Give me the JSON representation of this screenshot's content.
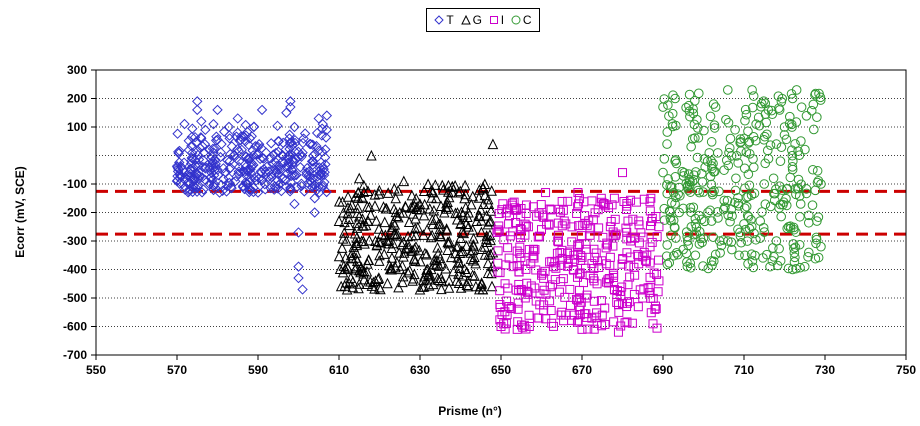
{
  "chart_data": {
    "type": "scatter",
    "xlabel": "Prisme (n°)",
    "ylabel": "Ecorr (mV, SCE)",
    "xlim": [
      550,
      750
    ],
    "ylim": [
      -700,
      300
    ],
    "x_ticks": [
      550,
      570,
      590,
      610,
      630,
      650,
      670,
      690,
      710,
      730,
      750
    ],
    "y_ticks": [
      300,
      200,
      100,
      -100,
      -200,
      -300,
      -400,
      -500,
      -600,
      -700
    ],
    "grid": "horizontal dotted",
    "legend_position": "top",
    "reference_lines": [
      {
        "y": -126,
        "style": "dashed",
        "color": "#cc0000"
      },
      {
        "y": -276,
        "style": "dashed",
        "color": "#cc0000"
      }
    ],
    "series": [
      {
        "name": "T",
        "marker": "diamond",
        "color": "#3333cc",
        "x_range": [
          570,
          607
        ],
        "points": [
          [
            570,
            -90
          ],
          [
            571,
            -70
          ],
          [
            572,
            -110
          ],
          [
            573,
            -60
          ],
          [
            574,
            -80
          ],
          [
            575,
            190
          ],
          [
            575,
            160
          ],
          [
            576,
            120
          ],
          [
            576,
            60
          ],
          [
            577,
            90
          ],
          [
            577,
            -40
          ],
          [
            578,
            20
          ],
          [
            579,
            110
          ],
          [
            580,
            160
          ],
          [
            580,
            -50
          ],
          [
            581,
            40
          ],
          [
            582,
            -60
          ],
          [
            583,
            -20
          ],
          [
            584,
            0
          ],
          [
            585,
            80
          ],
          [
            585,
            130
          ],
          [
            586,
            20
          ],
          [
            587,
            -40
          ],
          [
            588,
            60
          ],
          [
            589,
            100
          ],
          [
            590,
            30
          ],
          [
            590,
            -130
          ],
          [
            591,
            160
          ],
          [
            592,
            10
          ],
          [
            593,
            -10
          ],
          [
            594,
            -120
          ],
          [
            595,
            50
          ],
          [
            596,
            -80
          ],
          [
            597,
            150
          ],
          [
            597,
            -40
          ],
          [
            598,
            190
          ],
          [
            598,
            170
          ],
          [
            599,
            -170
          ],
          [
            599,
            100
          ],
          [
            600,
            -270
          ],
          [
            600,
            -390
          ],
          [
            600,
            -430
          ],
          [
            601,
            -470
          ],
          [
            601,
            10
          ],
          [
            602,
            -60
          ],
          [
            603,
            -90
          ],
          [
            604,
            -150
          ],
          [
            604,
            -200
          ],
          [
            605,
            130
          ],
          [
            606,
            110
          ],
          [
            606,
            -40
          ],
          [
            607,
            90
          ],
          [
            607,
            140
          ],
          [
            605,
            -110
          ],
          [
            603,
            40
          ],
          [
            596,
            0
          ],
          [
            588,
            -10
          ],
          [
            583,
            60
          ],
          [
            578,
            -100
          ],
          [
            572,
            -120
          ]
        ]
      },
      {
        "name": "G",
        "marker": "triangle",
        "color": "#000000",
        "x_range": [
          610,
          648
        ],
        "points": [
          [
            610,
            -230
          ],
          [
            611,
            -410
          ],
          [
            612,
            -470
          ],
          [
            613,
            -350
          ],
          [
            614,
            -400
          ],
          [
            615,
            -80
          ],
          [
            616,
            -300
          ],
          [
            617,
            -380
          ],
          [
            618,
            0
          ],
          [
            619,
            -440
          ],
          [
            620,
            -350
          ],
          [
            621,
            -180
          ],
          [
            622,
            -300
          ],
          [
            623,
            -260
          ],
          [
            624,
            -150
          ],
          [
            625,
            -200
          ],
          [
            626,
            -90
          ],
          [
            627,
            -410
          ],
          [
            628,
            -140
          ],
          [
            629,
            -320
          ],
          [
            630,
            -470
          ],
          [
            631,
            -210
          ],
          [
            632,
            -100
          ],
          [
            633,
            -280
          ],
          [
            634,
            -150
          ],
          [
            635,
            -240
          ],
          [
            636,
            -200
          ],
          [
            637,
            -180
          ],
          [
            638,
            -130
          ],
          [
            639,
            -320
          ],
          [
            640,
            -240
          ],
          [
            641,
            -150
          ],
          [
            642,
            -200
          ],
          [
            643,
            -260
          ],
          [
            644,
            -230
          ],
          [
            645,
            -190
          ],
          [
            646,
            -100
          ],
          [
            647,
            -170
          ],
          [
            648,
            40
          ],
          [
            648,
            -340
          ],
          [
            646,
            -320
          ],
          [
            643,
            -420
          ],
          [
            639,
            -440
          ],
          [
            635,
            -360
          ],
          [
            631,
            -460
          ],
          [
            627,
            -310
          ],
          [
            623,
            -400
          ],
          [
            619,
            -300
          ],
          [
            615,
            -450
          ],
          [
            612,
            -390
          ]
        ]
      },
      {
        "name": "I",
        "marker": "square",
        "color": "#cc00cc",
        "x_range": [
          649,
          689
        ],
        "points": [
          [
            649,
            -270
          ],
          [
            650,
            -600
          ],
          [
            651,
            -450
          ],
          [
            652,
            -530
          ],
          [
            653,
            -390
          ],
          [
            654,
            -610
          ],
          [
            655,
            -260
          ],
          [
            656,
            -500
          ],
          [
            657,
            -330
          ],
          [
            658,
            -180
          ],
          [
            659,
            -570
          ],
          [
            660,
            -420
          ],
          [
            661,
            -130
          ],
          [
            662,
            -510
          ],
          [
            663,
            -390
          ],
          [
            664,
            -300
          ],
          [
            665,
            -550
          ],
          [
            666,
            -240
          ],
          [
            667,
            -470
          ],
          [
            668,
            -350
          ],
          [
            669,
            -130
          ],
          [
            670,
            -610
          ],
          [
            671,
            -500
          ],
          [
            672,
            -280
          ],
          [
            673,
            -440
          ],
          [
            674,
            -190
          ],
          [
            675,
            -560
          ],
          [
            676,
            -380
          ],
          [
            677,
            -250
          ],
          [
            678,
            -470
          ],
          [
            679,
            -620
          ],
          [
            680,
            -60
          ],
          [
            681,
            -530
          ],
          [
            682,
            -300
          ],
          [
            683,
            -420
          ],
          [
            684,
            -230
          ],
          [
            685,
            -500
          ],
          [
            686,
            -350
          ],
          [
            687,
            -150
          ],
          [
            688,
            -540
          ],
          [
            689,
            -440
          ],
          [
            689,
            -250
          ],
          [
            684,
            -380
          ],
          [
            678,
            -150
          ],
          [
            672,
            -420
          ],
          [
            666,
            -560
          ],
          [
            660,
            -260
          ],
          [
            655,
            -470
          ],
          [
            652,
            -360
          ],
          [
            657,
            -600
          ]
        ]
      },
      {
        "name": "C",
        "marker": "circle",
        "color": "#339933",
        "x_range": [
          690,
          729
        ],
        "points": [
          [
            690,
            -60
          ],
          [
            690,
            170
          ],
          [
            691,
            40
          ],
          [
            692,
            -280
          ],
          [
            693,
            200
          ],
          [
            694,
            -200
          ],
          [
            695,
            -330
          ],
          [
            696,
            -110
          ],
          [
            697,
            -250
          ],
          [
            698,
            -350
          ],
          [
            699,
            -130
          ],
          [
            700,
            -290
          ],
          [
            701,
            -20
          ],
          [
            702,
            -370
          ],
          [
            703,
            170
          ],
          [
            704,
            -300
          ],
          [
            705,
            -190
          ],
          [
            706,
            230
          ],
          [
            707,
            -330
          ],
          [
            708,
            -80
          ],
          [
            709,
            -270
          ],
          [
            710,
            60
          ],
          [
            711,
            -380
          ],
          [
            712,
            230
          ],
          [
            713,
            110
          ],
          [
            714,
            -230
          ],
          [
            715,
            -100
          ],
          [
            716,
            160
          ],
          [
            717,
            -370
          ],
          [
            718,
            -300
          ],
          [
            719,
            -20
          ],
          [
            720,
            100
          ],
          [
            721,
            -250
          ],
          [
            722,
            200
          ],
          [
            723,
            230
          ],
          [
            724,
            -170
          ],
          [
            725,
            -390
          ],
          [
            726,
            -340
          ],
          [
            727,
            -50
          ],
          [
            728,
            -230
          ],
          [
            729,
            -100
          ],
          [
            729,
            -320
          ],
          [
            726,
            -210
          ],
          [
            722,
            -400
          ],
          [
            718,
            40
          ],
          [
            714,
            -290
          ],
          [
            710,
            -240
          ],
          [
            706,
            -300
          ],
          [
            702,
            -230
          ],
          [
            698,
            -240
          ]
        ]
      }
    ]
  }
}
